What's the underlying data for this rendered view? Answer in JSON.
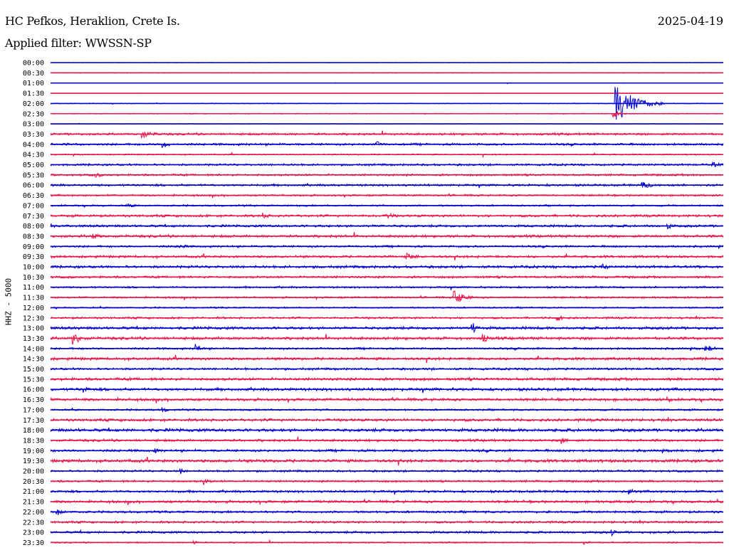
{
  "header": {
    "station": "HC Pefkos, Heraklion, Crete Is.",
    "date": "2025-04-19",
    "filter_label": "Applied filter: WWSSN-SP",
    "channel_label": "HHZ - 5000"
  },
  "colors": {
    "even_trace": "#0000cc",
    "odd_trace": "#e8174b"
  },
  "chart_data": {
    "type": "line",
    "title": "HC Pefkos, Heraklion, Crete Is.",
    "subtitle": "Applied filter: WWSSN-SP",
    "ylabel": "HHZ - 5000",
    "x_unit": "minutes within row",
    "x_range": [
      0,
      30
    ],
    "y_tick_labels": [
      "00:00",
      "00:30",
      "01:00",
      "01:30",
      "02:00",
      "02:30",
      "03:00",
      "03:30",
      "04:00",
      "04:30",
      "05:00",
      "05:30",
      "06:00",
      "06:30",
      "07:00",
      "07:30",
      "08:00",
      "08:30",
      "09:00",
      "09:30",
      "10:00",
      "10:30",
      "11:00",
      "11:30",
      "12:00",
      "12:30",
      "13:00",
      "13:30",
      "14:00",
      "14:30",
      "15:00",
      "15:30",
      "16:00",
      "16:30",
      "17:00",
      "17:30",
      "18:00",
      "18:30",
      "19:00",
      "19:30",
      "20:00",
      "20:30",
      "21:00",
      "21:30",
      "22:00",
      "22:30",
      "23:00",
      "23:30"
    ],
    "row_noise": [
      0.2,
      0.4,
      0.3,
      0.2,
      0.5,
      0.5,
      0.3,
      1.3,
      1.3,
      0.8,
      1.2,
      1.2,
      1.3,
      1.1,
      1.0,
      1.4,
      1.4,
      1.5,
      1.2,
      1.4,
      1.5,
      1.3,
      1.1,
      1.1,
      0.9,
      1.2,
      1.6,
      1.6,
      1.2,
      1.6,
      1.3,
      1.6,
      1.7,
      1.6,
      1.1,
      1.6,
      1.8,
      1.4,
      1.4,
      1.8,
      1.2,
      1.2,
      1.4,
      1.5,
      1.3,
      1.3,
      1.3,
      0.8
    ],
    "events": [
      {
        "row": 4,
        "minute": 25.2,
        "amp": 30,
        "dur": 2.2
      },
      {
        "row": 5,
        "minute": 25.1,
        "amp": 6,
        "dur": 0.8
      },
      {
        "row": 7,
        "minute": 4.1,
        "amp": 6,
        "dur": 1.5
      },
      {
        "row": 8,
        "minute": 5.0,
        "amp": 6,
        "dur": 0.8
      },
      {
        "row": 8,
        "minute": 14.5,
        "amp": 5,
        "dur": 1.0
      },
      {
        "row": 10,
        "minute": 29.5,
        "amp": 4,
        "dur": 1.5
      },
      {
        "row": 11,
        "minute": 2.0,
        "amp": 4,
        "dur": 1.0
      },
      {
        "row": 12,
        "minute": 26.3,
        "amp": 5,
        "dur": 2.0
      },
      {
        "row": 14,
        "minute": 3.4,
        "amp": 3,
        "dur": 1.5
      },
      {
        "row": 15,
        "minute": 9.5,
        "amp": 5,
        "dur": 0.8
      },
      {
        "row": 15,
        "minute": 15.0,
        "amp": 5,
        "dur": 1.0
      },
      {
        "row": 16,
        "minute": 27.5,
        "amp": 5,
        "dur": 0.8
      },
      {
        "row": 17,
        "minute": 1.9,
        "amp": 4,
        "dur": 1.5
      },
      {
        "row": 18,
        "minute": 5.7,
        "amp": 6,
        "dur": 0.8
      },
      {
        "row": 19,
        "minute": 15.9,
        "amp": 5,
        "dur": 1.5
      },
      {
        "row": 20,
        "minute": 24.6,
        "amp": 5,
        "dur": 1.0
      },
      {
        "row": 23,
        "minute": 18.0,
        "amp": 12,
        "dur": 1.2
      },
      {
        "row": 25,
        "minute": 22.6,
        "amp": 5,
        "dur": 0.8
      },
      {
        "row": 26,
        "minute": 18.8,
        "amp": 9,
        "dur": 0.8
      },
      {
        "row": 27,
        "minute": 1.0,
        "amp": 10,
        "dur": 1.0
      },
      {
        "row": 27,
        "minute": 19.3,
        "amp": 6,
        "dur": 0.8
      },
      {
        "row": 28,
        "minute": 6.5,
        "amp": 9,
        "dur": 0.6
      },
      {
        "row": 28,
        "minute": 29.2,
        "amp": 5,
        "dur": 1.5
      },
      {
        "row": 32,
        "minute": 1.5,
        "amp": 5,
        "dur": 0.8
      },
      {
        "row": 33,
        "minute": 27.5,
        "amp": 5,
        "dur": 0.8
      },
      {
        "row": 34,
        "minute": 5.0,
        "amp": 5,
        "dur": 0.6
      },
      {
        "row": 37,
        "minute": 22.8,
        "amp": 5,
        "dur": 0.8
      },
      {
        "row": 38,
        "minute": 4.7,
        "amp": 4,
        "dur": 0.6
      },
      {
        "row": 40,
        "minute": 5.8,
        "amp": 5,
        "dur": 0.5
      },
      {
        "row": 41,
        "minute": 6.8,
        "amp": 6,
        "dur": 0.8
      },
      {
        "row": 42,
        "minute": 25.8,
        "amp": 5,
        "dur": 0.8
      },
      {
        "row": 44,
        "minute": 0.3,
        "amp": 6,
        "dur": 0.8
      },
      {
        "row": 46,
        "minute": 25.0,
        "amp": 6,
        "dur": 0.6
      },
      {
        "row": 47,
        "minute": 6.4,
        "amp": 6,
        "dur": 0.3
      },
      {
        "row": 47,
        "minute": 23.8,
        "amp": 4,
        "dur": 0.6
      }
    ]
  }
}
